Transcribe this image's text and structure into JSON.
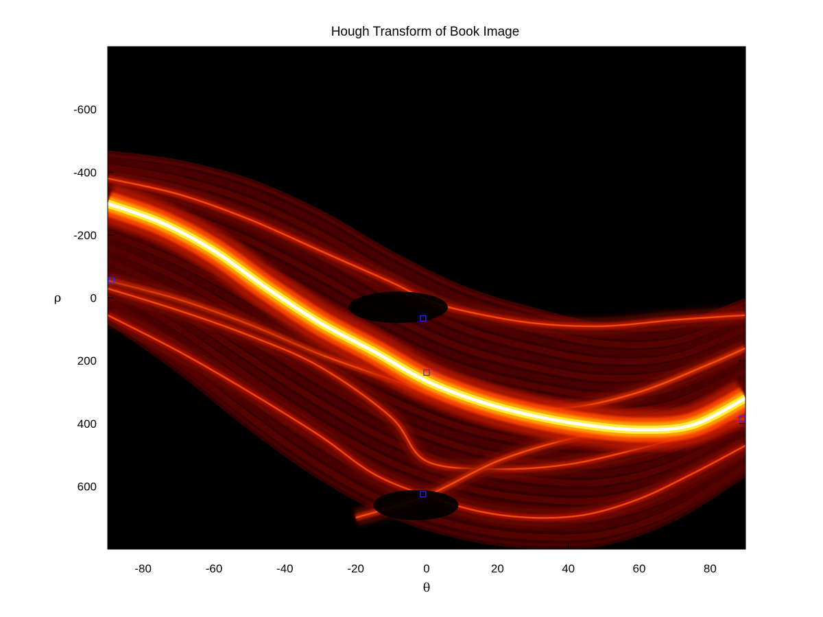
{
  "chart_data": {
    "type": "heatmap",
    "title": "Hough Transform of Book Image",
    "xlabel": "θ",
    "ylabel": "ρ",
    "xlim": [
      -90,
      90
    ],
    "ylim": [
      -800,
      800
    ],
    "y_reversed": true,
    "x_ticks": [
      -80,
      -60,
      -40,
      -20,
      0,
      20,
      40,
      60,
      80
    ],
    "x_tick_labels": [
      "-80",
      "-60",
      "-40",
      "-20",
      "0",
      "20",
      "40",
      "60",
      "80"
    ],
    "y_ticks": [
      -600,
      -400,
      -200,
      0,
      200,
      400,
      600
    ],
    "y_tick_labels": [
      "-600",
      "-400",
      "-200",
      "0",
      "200",
      "400",
      "600"
    ],
    "colormap": "hot",
    "background_color": "#000000",
    "grid": false,
    "peak_marker_color": "#2a2aff",
    "peaks": [
      {
        "theta": -89,
        "rho": -55
      },
      {
        "theta": -1,
        "rho": 65
      },
      {
        "theta": 0,
        "rho": 238
      },
      {
        "theta": -1,
        "rho": 625
      },
      {
        "theta": 89,
        "rho": 385
      }
    ],
    "features": {
      "dominant_curve": [
        [
          -90,
          -300
        ],
        [
          -75,
          -240
        ],
        [
          -60,
          -150
        ],
        [
          -45,
          -30
        ],
        [
          -30,
          80
        ],
        [
          -15,
          170
        ],
        [
          0,
          265
        ],
        [
          15,
          330
        ],
        [
          30,
          375
        ],
        [
          45,
          405
        ],
        [
          60,
          420
        ],
        [
          75,
          405
        ],
        [
          90,
          320
        ]
      ],
      "strong_curves": [
        [
          [
            -90,
            -380
          ],
          [
            -70,
            -330
          ],
          [
            -50,
            -250
          ],
          [
            -30,
            -150
          ],
          [
            -10,
            -50
          ],
          [
            0,
            5
          ],
          [
            10,
            40
          ],
          [
            30,
            80
          ],
          [
            50,
            90
          ],
          [
            70,
            70
          ],
          [
            90,
            55
          ]
        ],
        [
          [
            -90,
            -55
          ],
          [
            -70,
            5
          ],
          [
            -50,
            85
          ],
          [
            -30,
            180
          ],
          [
            -10,
            260
          ],
          [
            0,
            300
          ],
          [
            20,
            345
          ],
          [
            40,
            350
          ],
          [
            60,
            300
          ],
          [
            80,
            210
          ],
          [
            90,
            160
          ]
        ],
        [
          [
            -90,
            55
          ],
          [
            -70,
            170
          ],
          [
            -50,
            300
          ],
          [
            -30,
            440
          ],
          [
            -15,
            560
          ],
          [
            0,
            630
          ],
          [
            15,
            680
          ],
          [
            30,
            700
          ],
          [
            45,
            690
          ],
          [
            60,
            640
          ],
          [
            75,
            560
          ],
          [
            90,
            470
          ]
        ],
        [
          [
            -90,
            -30
          ],
          [
            -70,
            40
          ],
          [
            -50,
            120
          ],
          [
            -30,
            220
          ],
          [
            -10,
            380
          ],
          [
            0,
            520
          ],
          [
            20,
            545
          ],
          [
            40,
            530
          ],
          [
            60,
            480
          ],
          [
            80,
            420
          ],
          [
            90,
            390
          ]
        ],
        [
          [
            -20,
            700
          ],
          [
            0,
            630
          ],
          [
            20,
            520
          ],
          [
            40,
            450
          ],
          [
            60,
            410
          ],
          [
            80,
            390
          ],
          [
            90,
            385
          ]
        ]
      ],
      "envelope_upper": [
        [
          -90,
          -460
        ],
        [
          -70,
          -430
        ],
        [
          -50,
          -370
        ],
        [
          -30,
          -270
        ],
        [
          -10,
          -140
        ],
        [
          10,
          -30
        ],
        [
          30,
          40
        ],
        [
          50,
          90
        ],
        [
          70,
          90
        ],
        [
          90,
          10
        ]
      ],
      "envelope_lower": [
        [
          -90,
          70
        ],
        [
          -70,
          230
        ],
        [
          -50,
          410
        ],
        [
          -30,
          570
        ],
        [
          -10,
          690
        ],
        [
          10,
          760
        ],
        [
          30,
          790
        ],
        [
          50,
          780
        ],
        [
          70,
          700
        ],
        [
          90,
          560
        ]
      ]
    }
  }
}
